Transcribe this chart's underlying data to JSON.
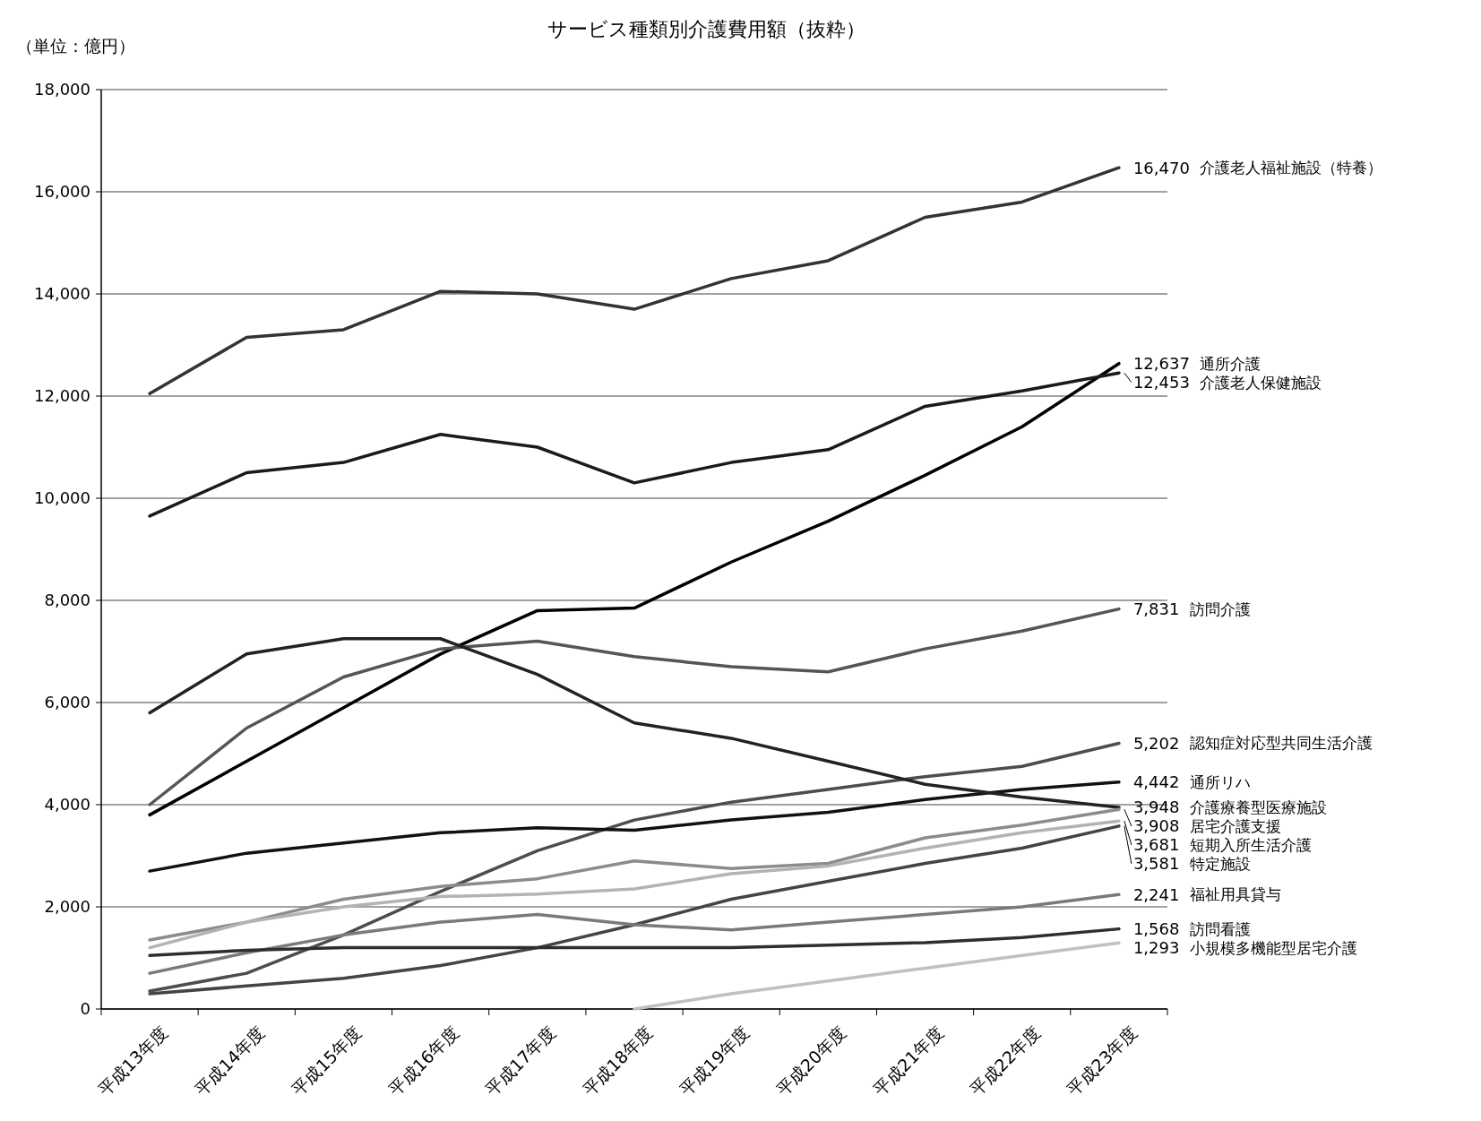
{
  "chart_data": {
    "type": "line",
    "title": "サービス種類別介護費用額（抜粋）",
    "ylabel": "（単位：億円）",
    "categories": [
      "平成13年度",
      "平成14年度",
      "平成15年度",
      "平成16年度",
      "平成17年度",
      "平成18年度",
      "平成19年度",
      "平成20年度",
      "平成21年度",
      "平成22年度",
      "平成23年度"
    ],
    "ylim": [
      0,
      18000
    ],
    "yticks": [
      {
        "value": 0,
        "label": "0"
      },
      {
        "value": 2000,
        "label": "2,000"
      },
      {
        "value": 4000,
        "label": "4,000"
      },
      {
        "value": 6000,
        "label": "6,000"
      },
      {
        "value": 8000,
        "label": "8,000"
      },
      {
        "value": 10000,
        "label": "10,000"
      },
      {
        "value": 12000,
        "label": "12,000"
      },
      {
        "value": 14000,
        "label": "14,000"
      },
      {
        "value": 16000,
        "label": "16,000"
      },
      {
        "value": 18000,
        "label": "18,000"
      }
    ],
    "grid": "y",
    "marker": "none",
    "line_style": "solid",
    "series": [
      {
        "name": "介護老人福祉施設（特養）",
        "color": "#333333",
        "values": [
          12050,
          13150,
          13300,
          14050,
          14000,
          13700,
          14300,
          14650,
          15500,
          15800,
          16470
        ],
        "value_labels": [
          null,
          null,
          null,
          null,
          null,
          null,
          null,
          null,
          null,
          null,
          "16,470"
        ]
      },
      {
        "name": "通所介護",
        "color": "#000000",
        "values": [
          3800,
          4850,
          5900,
          6950,
          7800,
          7850,
          8750,
          9550,
          10450,
          11400,
          12637
        ],
        "value_labels": [
          null,
          null,
          null,
          null,
          null,
          null,
          null,
          null,
          null,
          null,
          "12,637"
        ]
      },
      {
        "name": "介護老人保健施設",
        "color": "#1a1a1a",
        "values": [
          9650,
          10500,
          10700,
          11250,
          11000,
          10300,
          10700,
          10950,
          11800,
          12100,
          12453
        ],
        "value_labels": [
          null,
          null,
          null,
          null,
          null,
          null,
          null,
          null,
          null,
          null,
          "12,453"
        ]
      },
      {
        "name": "訪問介護",
        "color": "#555555",
        "values": [
          4000,
          5500,
          6500,
          7050,
          7200,
          6900,
          6700,
          6600,
          7050,
          7400,
          7831
        ],
        "value_labels": [
          null,
          null,
          null,
          null,
          null,
          null,
          null,
          null,
          null,
          null,
          "7,831"
        ]
      },
      {
        "name": "認知症対応型共同生活介護",
        "color": "#4d4d4d",
        "values": [
          350,
          700,
          1450,
          2300,
          3100,
          3700,
          4050,
          4300,
          4550,
          4750,
          5202
        ],
        "value_labels": [
          null,
          null,
          null,
          null,
          null,
          null,
          null,
          null,
          null,
          null,
          "5,202"
        ]
      },
      {
        "name": "通所リハ",
        "color": "#111111",
        "values": [
          2700,
          3050,
          3250,
          3450,
          3550,
          3500,
          3700,
          3850,
          4100,
          4300,
          4442
        ],
        "value_labels": [
          null,
          null,
          null,
          null,
          null,
          null,
          null,
          null,
          null,
          null,
          "4,442"
        ]
      },
      {
        "name": "介護療養型医療施設",
        "color": "#222222",
        "values": [
          5800,
          6950,
          7250,
          7250,
          6550,
          5600,
          5300,
          4850,
          4400,
          4150,
          3948
        ],
        "value_labels": [
          null,
          null,
          null,
          null,
          null,
          null,
          null,
          null,
          null,
          null,
          "3,948"
        ]
      },
      {
        "name": "居宅介護支援",
        "color": "#8c8c8c",
        "values": [
          1350,
          1700,
          2150,
          2400,
          2550,
          2900,
          2750,
          2850,
          3350,
          3600,
          3908
        ],
        "value_labels": [
          null,
          null,
          null,
          null,
          null,
          null,
          null,
          null,
          null,
          null,
          "3,908"
        ]
      },
      {
        "name": "短期入所生活介護",
        "color": "#b3b3b3",
        "values": [
          1200,
          1700,
          2000,
          2200,
          2250,
          2350,
          2650,
          2800,
          3150,
          3450,
          3681
        ],
        "value_labels": [
          null,
          null,
          null,
          null,
          null,
          null,
          null,
          null,
          null,
          null,
          "3,681"
        ]
      },
      {
        "name": "特定施設",
        "color": "#444444",
        "values": [
          300,
          450,
          600,
          850,
          1200,
          1650,
          2150,
          2500,
          2850,
          3150,
          3581
        ],
        "value_labels": [
          null,
          null,
          null,
          null,
          null,
          null,
          null,
          null,
          null,
          null,
          "3,581"
        ]
      },
      {
        "name": "福祉用具貸与",
        "color": "#7a7a7a",
        "values": [
          700,
          1100,
          1450,
          1700,
          1850,
          1650,
          1550,
          1700,
          1850,
          2000,
          2241
        ],
        "value_labels": [
          null,
          null,
          null,
          null,
          null,
          null,
          null,
          null,
          null,
          null,
          "2,241"
        ]
      },
      {
        "name": "訪問看護",
        "color": "#2e2e2e",
        "values": [
          1050,
          1150,
          1200,
          1200,
          1200,
          1200,
          1200,
          1250,
          1300,
          1400,
          1568
        ],
        "value_labels": [
          null,
          null,
          null,
          null,
          null,
          null,
          null,
          null,
          null,
          null,
          "1,568"
        ]
      },
      {
        "name": "小規模多機能型居宅介護",
        "color": "#c0c0c0",
        "values": [
          null,
          null,
          null,
          null,
          null,
          0,
          300,
          550,
          800,
          1050,
          1293
        ],
        "value_labels": [
          null,
          null,
          null,
          null,
          null,
          null,
          null,
          null,
          null,
          null,
          "1,293"
        ]
      }
    ]
  }
}
